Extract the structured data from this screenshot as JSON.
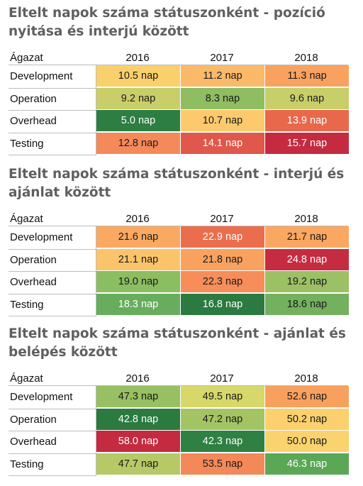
{
  "column_header": "Ágazat",
  "years": [
    "2016",
    "2017",
    "2018"
  ],
  "rows": [
    "Development",
    "Operation",
    "Overhead",
    "Testing"
  ],
  "unit": "nap",
  "chart_data": [
    {
      "type": "heatmap",
      "title": "Eltelt napok száma státuszonként - pozíció nyitása és interjú között",
      "rows": [
        "Development",
        "Operation",
        "Overhead",
        "Testing"
      ],
      "columns": [
        "2016",
        "2017",
        "2018"
      ],
      "values": [
        [
          10.5,
          11.2,
          11.3
        ],
        [
          9.2,
          8.3,
          9.6
        ],
        [
          5.0,
          10.7,
          13.9
        ],
        [
          12.8,
          14.1,
          15.7
        ]
      ],
      "labels": [
        [
          "10.5 nap",
          "11.2 nap",
          "11.3 nap"
        ],
        [
          "9.2 nap",
          "8.3 nap",
          "9.6 nap"
        ],
        [
          "5.0 nap",
          "10.7 nap",
          "13.9 nap"
        ],
        [
          "12.8 nap",
          "14.1 nap",
          "15.7 nap"
        ]
      ],
      "colors": [
        [
          "#fad06c",
          "#fbb96a",
          "#f9a25f"
        ],
        [
          "#cace68",
          "#8fbd62",
          "#c8ce68"
        ],
        [
          "#2d7e42",
          "#fcca6c",
          "#e8684b"
        ],
        [
          "#f4895a",
          "#e0574b",
          "#c42b40"
        ]
      ]
    },
    {
      "type": "heatmap",
      "title": "Eltelt napok száma státuszonként -  interjú és ajánlat között",
      "rows": [
        "Development",
        "Operation",
        "Overhead",
        "Testing"
      ],
      "columns": [
        "2016",
        "2017",
        "2018"
      ],
      "values": [
        [
          21.6,
          22.9,
          21.7
        ],
        [
          21.1,
          21.8,
          24.8
        ],
        [
          19.0,
          22.3,
          19.2
        ],
        [
          18.3,
          16.8,
          18.6
        ]
      ],
      "labels": [
        [
          "21.6 nap",
          "22.9 nap",
          "21.7 nap"
        ],
        [
          "21.1 nap",
          "21.8 nap",
          "24.8 nap"
        ],
        [
          "19.0 nap",
          "22.3 nap",
          "19.2 nap"
        ],
        [
          "18.3 nap",
          "16.8 nap",
          "18.6 nap"
        ]
      ],
      "colors": [
        [
          "#faa962",
          "#ea6e4d",
          "#faa761"
        ],
        [
          "#fbc46b",
          "#f9a25f",
          "#c52c41"
        ],
        [
          "#8bbd61",
          "#f78d59",
          "#9cc064"
        ],
        [
          "#67ad5d",
          "#2b7a40",
          "#73b15e"
        ]
      ]
    },
    {
      "type": "heatmap",
      "title": "Eltelt napok száma státuszonként - ajánlat és belépés között",
      "rows": [
        "Development",
        "Operation",
        "Overhead",
        "Testing"
      ],
      "columns": [
        "2016",
        "2017",
        "2018"
      ],
      "values": [
        [
          47.3,
          49.5,
          52.6
        ],
        [
          42.8,
          47.2,
          50.2
        ],
        [
          58.0,
          42.3,
          50.0
        ],
        [
          47.7,
          53.5,
          46.3
        ]
      ],
      "labels": [
        [
          "47.3 nap",
          "49.5 nap",
          "52.6 nap"
        ],
        [
          "42.8 nap",
          "47.2 nap",
          "50.2 nap"
        ],
        [
          "58.0 nap",
          "42.3 nap",
          "50.0 nap"
        ],
        [
          "47.7 nap",
          "53.5 nap",
          "46.3 nap"
        ]
      ],
      "colors": [
        [
          "#96c061",
          "#d6d86a",
          "#f8a15f"
        ],
        [
          "#2b7a40",
          "#a4c464",
          "#fbd06d"
        ],
        [
          "#c42b40",
          "#2f8043",
          "#fbd36e"
        ],
        [
          "#b7c966",
          "#f38859",
          "#5aa756"
        ]
      ]
    }
  ]
}
